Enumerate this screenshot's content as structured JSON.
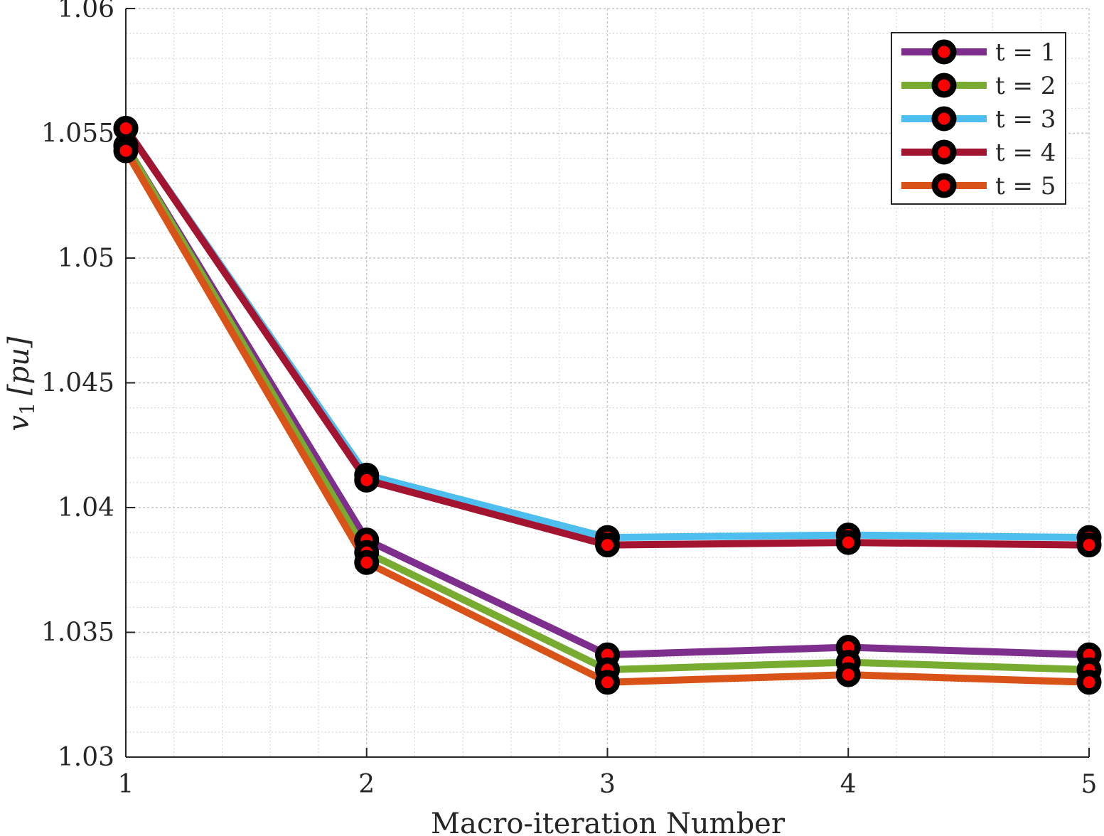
{
  "chart_data": {
    "type": "line",
    "title": "",
    "xlabel": "Macro-iteration Number",
    "ylabel": {
      "symbol": "v",
      "subscript": "1",
      "unit": "[pu]"
    },
    "x": [
      1,
      2,
      3,
      4,
      5
    ],
    "xlim": [
      1,
      5
    ],
    "ylim": [
      1.03,
      1.06
    ],
    "xticks": [
      1,
      2,
      3,
      4,
      5
    ],
    "xtick_labels": [
      "1",
      "2",
      "3",
      "4",
      "5"
    ],
    "yticks": [
      1.03,
      1.035,
      1.04,
      1.045,
      1.05,
      1.055,
      1.06
    ],
    "ytick_labels": [
      "1.03",
      "1.035",
      "1.04",
      "1.045",
      "1.05",
      "1.055",
      "1.06"
    ],
    "grid": true,
    "minor_grid": true,
    "legend_position": "top-right",
    "marker": {
      "face_color": "#ff0000",
      "edge_color": "#000000"
    },
    "series": [
      {
        "name": "t = 1",
        "color": "#7e2f8e",
        "values": [
          1.0545,
          1.0387,
          1.0341,
          1.0344,
          1.0341
        ]
      },
      {
        "name": "t = 2",
        "color": "#77ac30",
        "values": [
          1.0545,
          1.0382,
          1.0335,
          1.0338,
          1.0335
        ]
      },
      {
        "name": "t = 3",
        "color": "#4dbeee",
        "values": [
          1.0552,
          1.0413,
          1.0388,
          1.0389,
          1.0388
        ]
      },
      {
        "name": "t = 4",
        "color": "#a2142f",
        "values": [
          1.0552,
          1.0411,
          1.0385,
          1.0386,
          1.0385
        ]
      },
      {
        "name": "t = 5",
        "color": "#d95319",
        "values": [
          1.0543,
          1.0378,
          1.033,
          1.0333,
          1.033
        ]
      }
    ]
  }
}
